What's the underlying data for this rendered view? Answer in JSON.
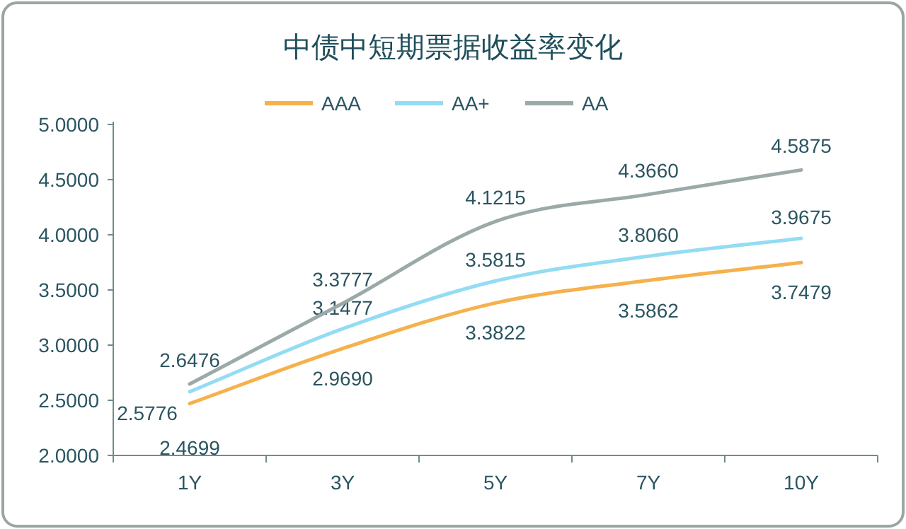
{
  "chart_data": {
    "type": "line",
    "title": "中债中短期票据收益率变化",
    "categories": [
      "1Y",
      "3Y",
      "5Y",
      "7Y",
      "10Y"
    ],
    "series": [
      {
        "name": "AAA",
        "color": "#f5b14c",
        "values": [
          2.4699,
          2.969,
          3.3822,
          3.5862,
          3.7479
        ],
        "value_labels": [
          "2.4699",
          "2.9690",
          "3.3822",
          "3.5862",
          "3.7479"
        ]
      },
      {
        "name": "AA+",
        "color": "#93dcf3",
        "values": [
          2.5776,
          3.1477,
          3.5815,
          3.806,
          3.9675
        ],
        "value_labels": [
          "2.5776",
          "3.1477",
          "3.5815",
          "3.8060",
          "3.9675"
        ]
      },
      {
        "name": "AA",
        "color": "#9ca9a9",
        "values": [
          2.6476,
          3.3777,
          4.1215,
          4.366,
          4.5875
        ],
        "value_labels": [
          "2.6476",
          "3.3777",
          "4.1215",
          "4.3660",
          "4.5875"
        ]
      }
    ],
    "ylim": [
      2,
      5
    ],
    "yticks": [
      {
        "value": 2,
        "label": "2.0000"
      },
      {
        "value": 2.5,
        "label": "2.5000"
      },
      {
        "value": 3,
        "label": "3.0000"
      },
      {
        "value": 3.5,
        "label": "3.5000"
      },
      {
        "value": 4,
        "label": "4.0000"
      },
      {
        "value": 4.5,
        "label": "4.5000"
      },
      {
        "value": 5,
        "label": "5.0000"
      }
    ],
    "grid": false,
    "legend": "top",
    "marker": "none",
    "line_style": "solid"
  }
}
